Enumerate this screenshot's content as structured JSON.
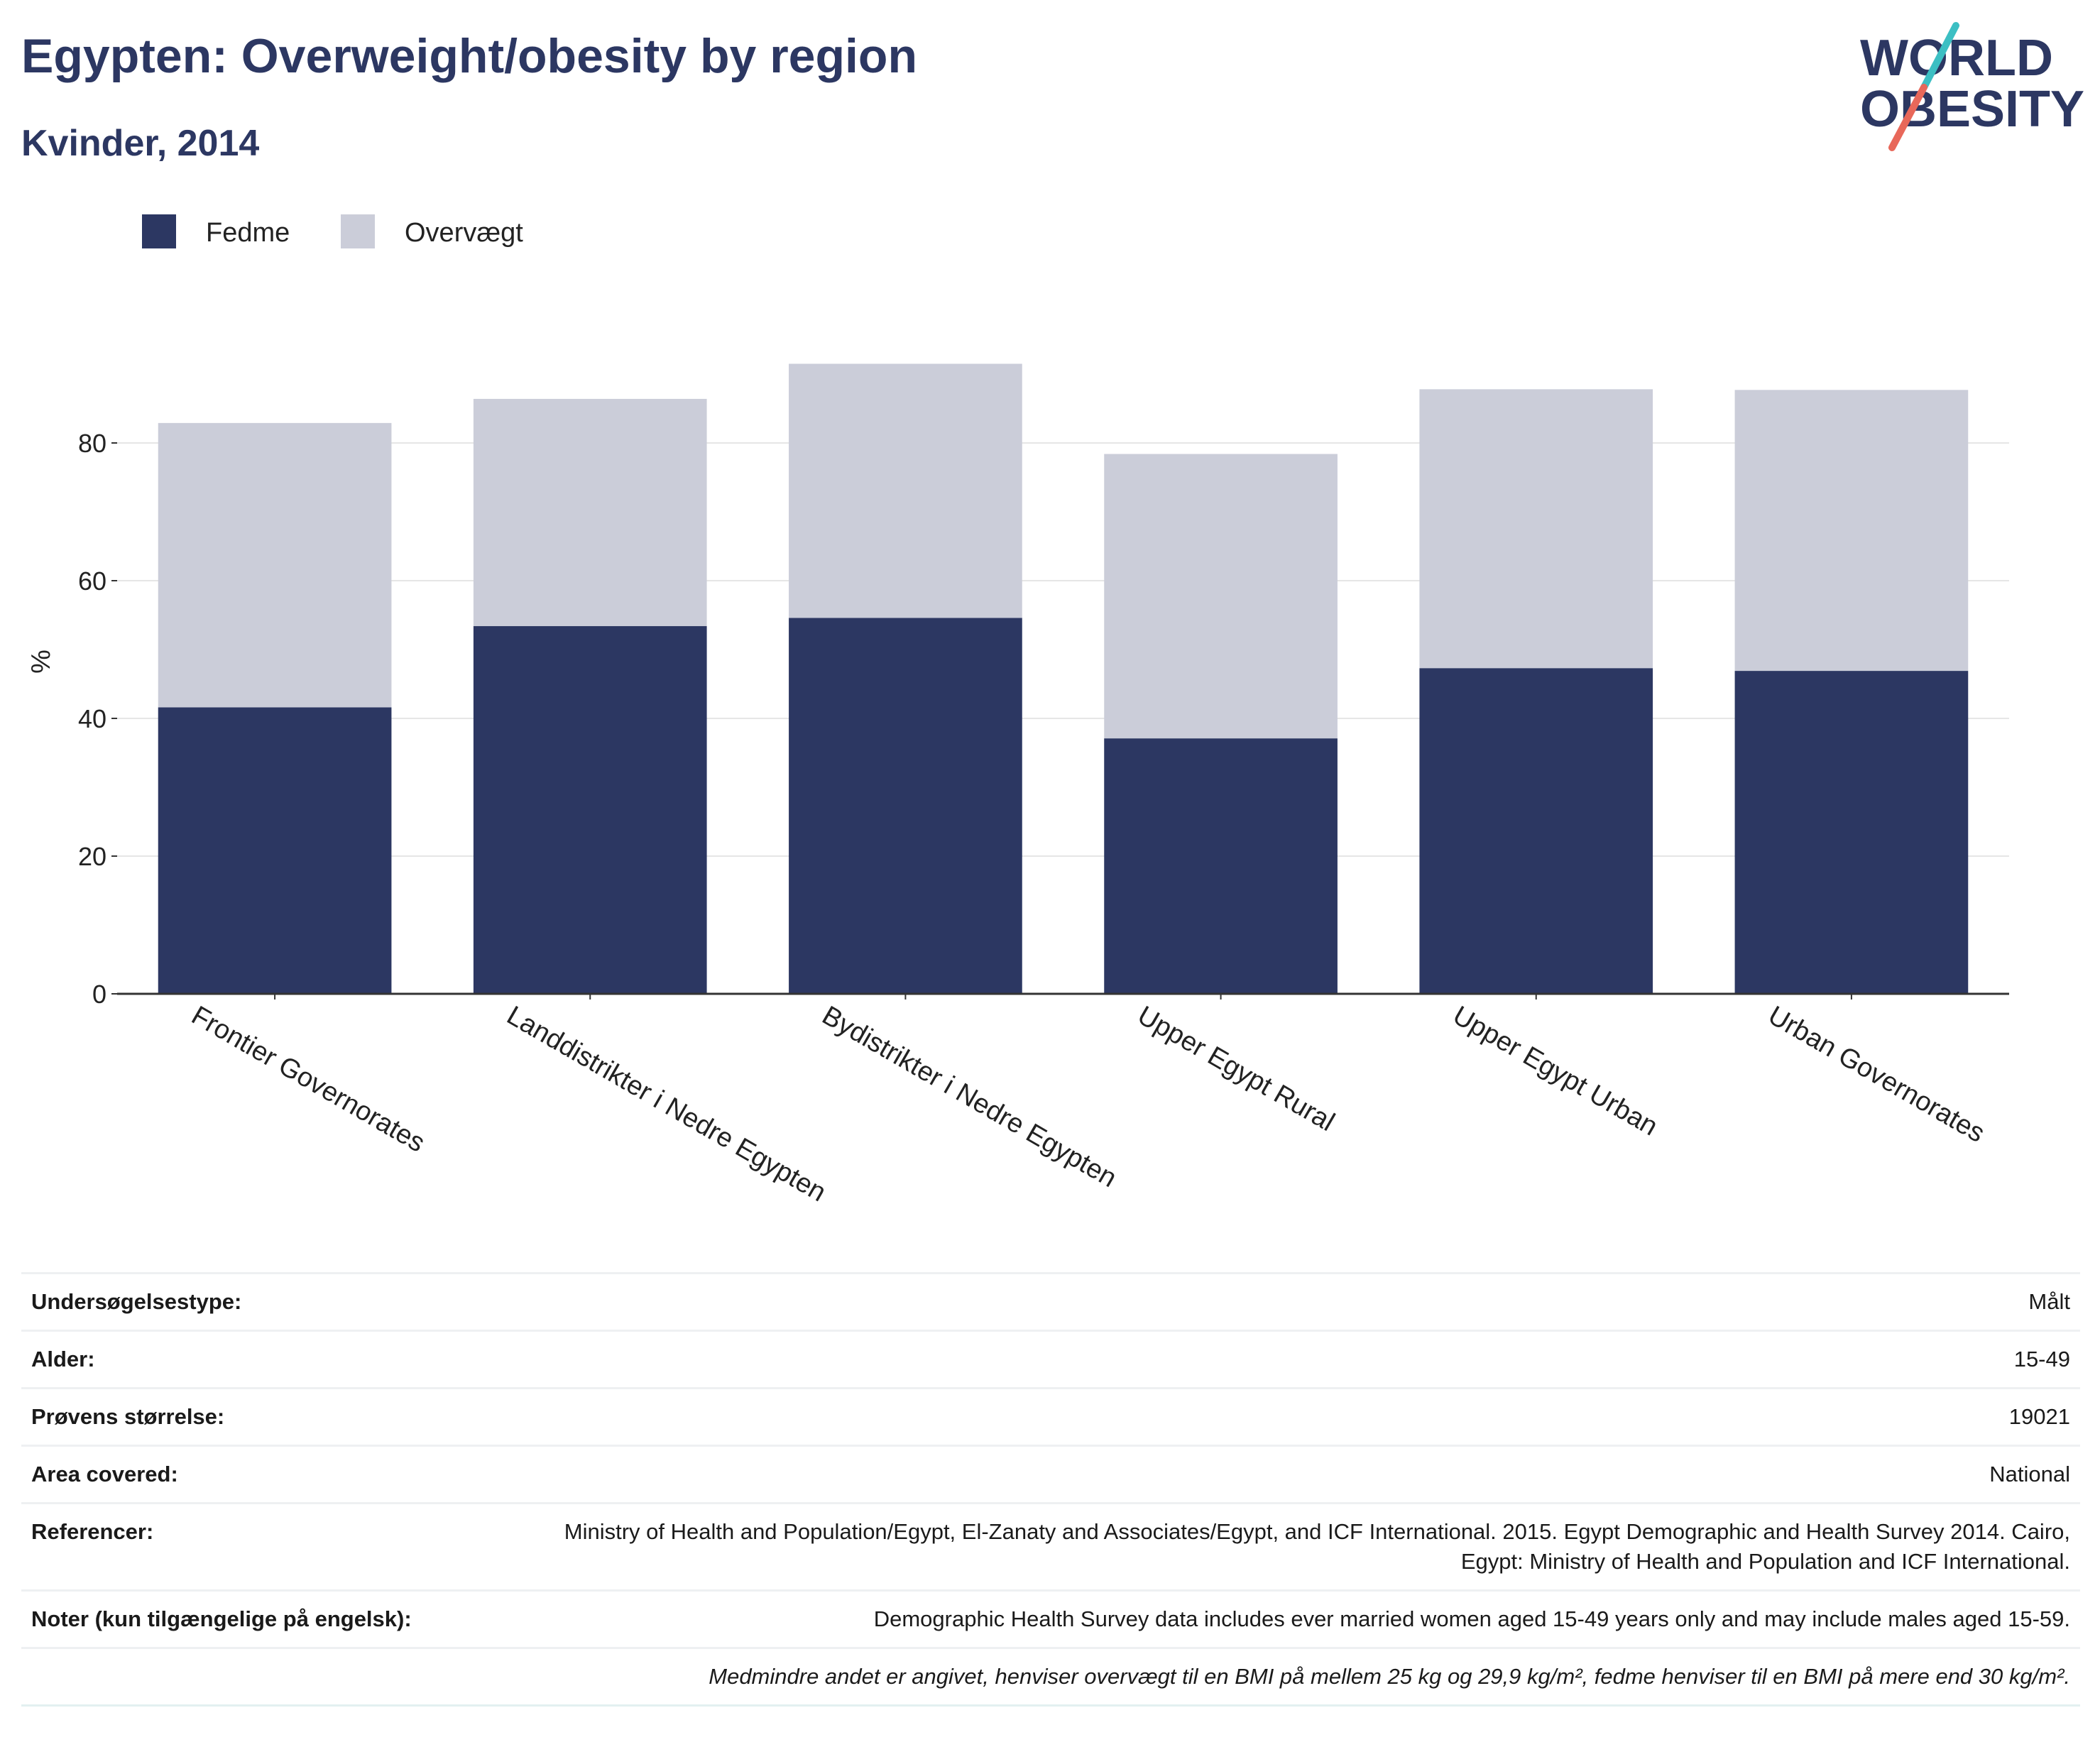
{
  "header": {
    "title": "Egypten: Overweight/obesity by region",
    "subtitle": "Kvinder, 2014",
    "logo_line1": "WORLD",
    "logo_line2": "OBESITY"
  },
  "colors": {
    "fedme": "#2c3762",
    "overvaegt": "#cbcdd9",
    "grid": "#e6e6e6",
    "title": "#2c3762",
    "logo_teal": "#3cbfc3",
    "logo_red": "#e8685a"
  },
  "chart_data": {
    "type": "bar",
    "stacked": true,
    "title": "",
    "xlabel": "",
    "ylabel": "%",
    "ylim": [
      0,
      100
    ],
    "yticks": [
      0,
      20,
      40,
      60,
      80
    ],
    "grid": true,
    "legend_position": "top-left",
    "categories": [
      "Frontier Governorates",
      "Landdistrikter i Nedre Egypten",
      "Bydistrikter i Nedre Egypten",
      "Upper Egypt Rural",
      "Upper Egypt Urban",
      "Urban Governorates"
    ],
    "series": [
      {
        "name": "Fedme",
        "values": [
          41.6,
          53.4,
          54.6,
          37.1,
          47.3,
          46.9
        ]
      },
      {
        "name": "Overvægt",
        "values": [
          41.3,
          33.0,
          36.9,
          41.3,
          40.5,
          40.8
        ]
      }
    ]
  },
  "meta": {
    "rows": [
      {
        "label": "Undersøgelsestype:",
        "value": "Målt"
      },
      {
        "label": "Alder:",
        "value": "15-49"
      },
      {
        "label": "Prøvens størrelse:",
        "value": "19021"
      },
      {
        "label": "Area covered:",
        "value": "National"
      },
      {
        "label": "Referencer:",
        "value": "Ministry of Health and Population/Egypt, El-Zanaty and Associates/Egypt, and ICF International. 2015. Egypt Demographic and Health Survey 2014. Cairo, Egypt: Ministry of Health and Population and ICF International."
      },
      {
        "label": "Noter (kun tilgængelige på engelsk):",
        "value": "Demographic Health Survey data includes ever married women aged 15-49 years only and may include males aged 15-59."
      }
    ],
    "footnote": "Medmindre andet er angivet, henviser overvægt til en BMI på mellem 25 kg og 29,9 kg/m², fedme henviser til en BMI på mere end 30 kg/m²."
  }
}
